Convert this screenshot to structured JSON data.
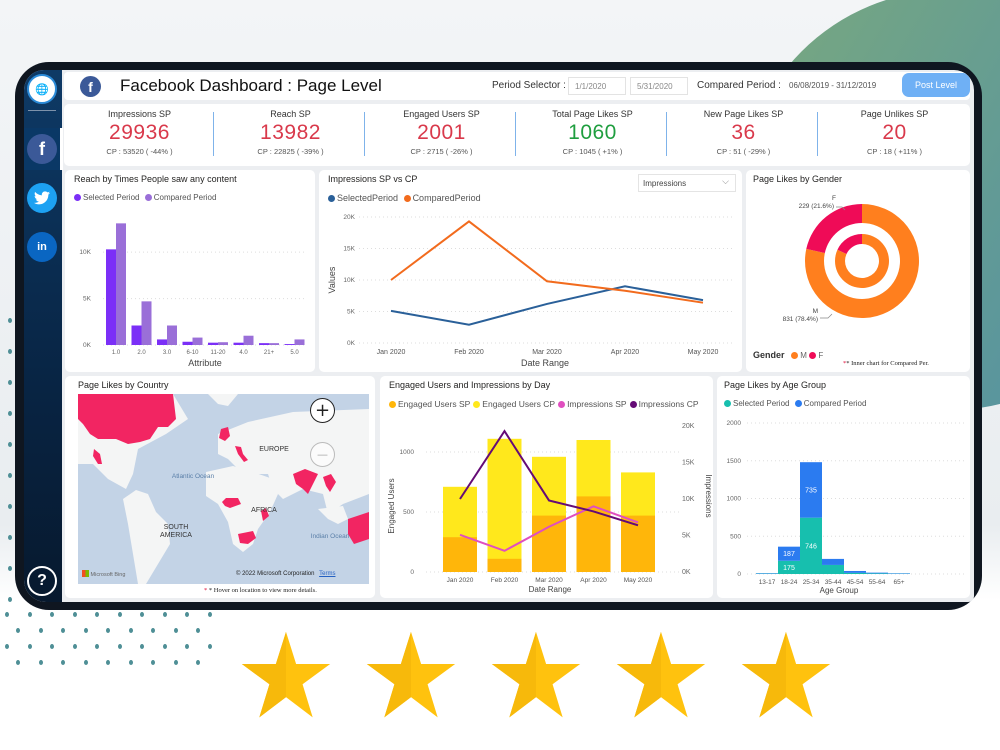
{
  "header": {
    "title": "Facebook Dashboard : Page Level",
    "period_selector_label": "Period Selector :",
    "period_start": "1/1/2020",
    "period_end": "5/31/2020",
    "compared_period_label": "Compared Period :",
    "compared_period_value": "06/08/2019 - 31/12/2019",
    "post_level_button": "Post Level"
  },
  "sidebar": {
    "items": [
      {
        "name": "facebook",
        "glyph": "f",
        "color": "#3b5998"
      },
      {
        "name": "twitter",
        "glyph": "🐦",
        "color": "#1da1f2"
      },
      {
        "name": "linkedin",
        "glyph": "in",
        "color": "#0a66c2"
      }
    ],
    "help_glyph": "?"
  },
  "kpis": [
    {
      "label": "Impressions SP",
      "value": "29936",
      "cp": "CP : 53520 ( -44% )",
      "color": "#d9394b"
    },
    {
      "label": "Reach SP",
      "value": "13982",
      "cp": "CP : 22825 ( -39% )",
      "color": "#d9394b"
    },
    {
      "label": "Engaged Users SP",
      "value": "2001",
      "cp": "CP : 2715 ( -26% )",
      "color": "#d9394b"
    },
    {
      "label": "Total Page Likes SP",
      "value": "1060",
      "cp": "CP : 1045 ( +1% )",
      "color": "#1f9e3f"
    },
    {
      "label": "New Page Likes SP",
      "value": "36",
      "cp": "CP : 51 ( -29% )",
      "color": "#d9394b"
    },
    {
      "label": "Page Unlikes SP",
      "value": "20",
      "cp": "CP : 18 ( +11% )",
      "color": "#d9394b"
    }
  ],
  "impressions_dropdown": "Impressions",
  "map": {
    "title": "Page Likes by Country",
    "labels": [
      "EUROPE",
      "Atlantic Ocean",
      "AFRICA",
      "SOUTH AMERICA",
      "Indian Ocean"
    ],
    "bing": "Microsoft Bing",
    "copyright": "© 2022 Microsoft Corporation",
    "terms": "Terms",
    "zoom_in": "+",
    "zoom_out": "—",
    "note": "* Hover on location to view more details.",
    "highlight_color": "#f22562"
  },
  "gender_note": "* Inner chart for Compared Per.",
  "chart_data": [
    {
      "type": "bar",
      "title": "Reach by Times People saw any content",
      "categories": [
        "1.0",
        "2.0",
        "3.0",
        "6-10",
        "11-20",
        "4.0",
        "21+",
        "5.0"
      ],
      "series": [
        {
          "name": "Selected Period",
          "color": "#7b2ff7",
          "values": [
            10300,
            2100,
            600,
            350,
            250,
            250,
            200,
            100
          ]
        },
        {
          "name": "Compared Period",
          "color": "#9a6fd8",
          "values": [
            13100,
            4700,
            2100,
            800,
            300,
            1000,
            200,
            600
          ]
        }
      ],
      "xlabel": "Attribute",
      "ylabel": "",
      "yticks": [
        "0K",
        "5K",
        "10K"
      ],
      "ylim": [
        0,
        14000
      ]
    },
    {
      "type": "line",
      "title": "Impressions SP vs CP",
      "categories": [
        "Jan 2020",
        "Feb 2020",
        "Mar 2020",
        "Apr 2020",
        "May 2020"
      ],
      "series": [
        {
          "name": "SelectedPeriod",
          "color": "#2a6099",
          "values": [
            5100,
            2900,
            6200,
            9000,
            6800
          ]
        },
        {
          "name": "ComparedPeriod",
          "color": "#f26b1d",
          "values": [
            10000,
            19300,
            9800,
            8300,
            6400
          ]
        }
      ],
      "xlabel": "Date Range",
      "ylabel": "Values",
      "yticks": [
        "0K",
        "5K",
        "10K",
        "15K",
        "20K"
      ],
      "ylim": [
        0,
        20000
      ]
    },
    {
      "type": "pie",
      "title": "Page Likes by Gender",
      "legend_title": "Gender",
      "outer": [
        {
          "name": "M",
          "value": 831,
          "label": "831 (78.4%)",
          "color": "#ff7f1e"
        },
        {
          "name": "F",
          "value": 229,
          "label": "229 (21.6%)",
          "color": "#ef0b57"
        }
      ],
      "inner": [
        {
          "name": "M",
          "value": 855,
          "color": "#ff7f1e"
        },
        {
          "name": "F",
          "value": 190,
          "color": "#ef0b57"
        }
      ]
    },
    {
      "type": "bar",
      "title": "Engaged Users and Impressions by Day",
      "categories": [
        "Jan 2020",
        "Feb 2020",
        "Mar 2020",
        "Apr 2020",
        "May 2020"
      ],
      "series": [
        {
          "name": "Engaged Users SP",
          "color": "#ffb60a",
          "axis": "left",
          "values": [
            290,
            110,
            470,
            630,
            470
          ]
        },
        {
          "name": "Engaged Users CP",
          "color": "#ffe81c",
          "axis": "left",
          "values": [
            710,
            1110,
            960,
            1100,
            830
          ]
        },
        {
          "name": "Impressions SP",
          "color": "#e04fbf",
          "axis": "right",
          "type": "line",
          "values": [
            5100,
            2900,
            6200,
            9000,
            6800
          ]
        },
        {
          "name": "Impressions CP",
          "color": "#650b76",
          "axis": "right",
          "type": "line",
          "values": [
            10000,
            19300,
            9800,
            8300,
            6400
          ]
        }
      ],
      "xlabel": "Date Range",
      "ylabel": "Engaged Users",
      "y2label": "Impressions",
      "yticks": [
        "0",
        "500",
        "1000"
      ],
      "ylim": [
        0,
        1250
      ],
      "y2ticks": [
        "0K",
        "5K",
        "10K",
        "15K",
        "20K"
      ],
      "y2lim": [
        0,
        20000
      ]
    },
    {
      "type": "bar",
      "title": "Page Likes by Age Group",
      "categories": [
        "13-17",
        "18-24",
        "25-34",
        "35-44",
        "45-54",
        "55-64",
        "65+"
      ],
      "series": [
        {
          "name": "Selected Period",
          "color": "#17bfae",
          "values": [
            5,
            175,
            746,
            120,
            15,
            8,
            4
          ]
        },
        {
          "name": "Compared Period",
          "color": "#2b7bf0",
          "values": [
            6,
            187,
            735,
            80,
            25,
            10,
            6
          ]
        }
      ],
      "data_labels": {
        "18-24": [
          "175",
          "187"
        ],
        "25-34": [
          "746",
          "735"
        ]
      },
      "xlabel": "Age Group",
      "ylabel": "",
      "yticks": [
        "0",
        "500",
        "1000",
        "1500",
        "2000"
      ],
      "ylim": [
        0,
        2000
      ]
    }
  ],
  "rating": {
    "stars": 5,
    "color": "#ffc20e"
  }
}
